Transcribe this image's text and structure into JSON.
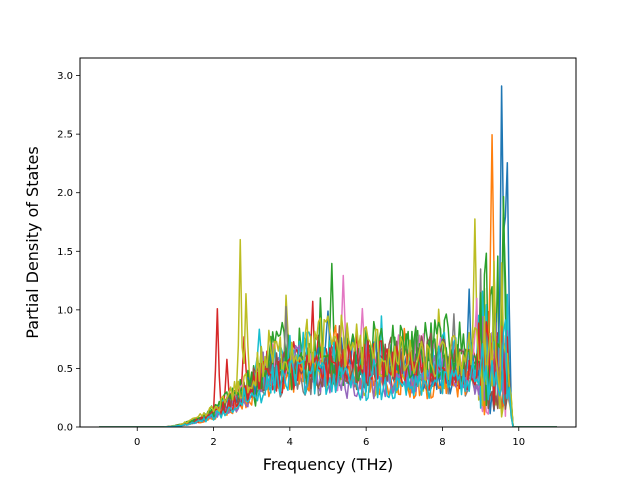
{
  "chart_data": {
    "type": "line",
    "title": "",
    "xlabel": "Frequency (THz)",
    "ylabel": "Partial Density of States",
    "xlim": [
      -1.5,
      11.5
    ],
    "ylim": [
      0,
      3.15
    ],
    "x_ticks": [
      0,
      2,
      4,
      6,
      8,
      10
    ],
    "y_ticks": [
      0.0,
      0.5,
      1.0,
      1.5,
      2.0,
      2.5,
      3.0
    ],
    "x_tick_labels": [
      "0",
      "2",
      "4",
      "6",
      "8",
      "10"
    ],
    "y_tick_labels": [
      "0.0",
      "0.5",
      "1.0",
      "1.5",
      "2.0",
      "2.5",
      "3.0"
    ],
    "grid": false,
    "legend": "none",
    "data_x_range": [
      -1.0,
      11.0
    ],
    "colors": [
      "#1f77b4",
      "#ff7f0e",
      "#2ca02c",
      "#d62728",
      "#9467bd",
      "#8c564b",
      "#e377c2",
      "#7f7f7f",
      "#bcbd22",
      "#17becf"
    ],
    "series": [
      {
        "color": "#d62728",
        "peaks": [
          [
            2.1,
            1.43
          ],
          [
            2.35,
            0.85
          ],
          [
            2.8,
            0.92
          ],
          [
            4.6,
            0.8
          ],
          [
            6.3,
            0.7
          ],
          [
            9.4,
            0.6
          ]
        ]
      },
      {
        "color": "#bcbd22",
        "peaks": [
          [
            2.7,
            1.75
          ],
          [
            2.85,
            1.37
          ],
          [
            3.9,
            1.12
          ],
          [
            7.9,
            1.07
          ],
          [
            8.85,
            1.9
          ],
          [
            9.1,
            1.2
          ]
        ]
      },
      {
        "color": "#2ca02c",
        "peaks": [
          [
            4.8,
            1.2
          ],
          [
            5.1,
            1.36
          ],
          [
            6.2,
            0.85
          ],
          [
            9.15,
            1.27
          ],
          [
            9.6,
            1.4
          ]
        ]
      },
      {
        "color": "#e377c2",
        "peaks": [
          [
            5.4,
            1.51
          ],
          [
            5.9,
            1.15
          ],
          [
            7.4,
            0.8
          ],
          [
            8.9,
            0.95
          ],
          [
            9.5,
            0.45
          ]
        ]
      },
      {
        "color": "#7f7f7f",
        "peaks": [
          [
            3.9,
            1.18
          ],
          [
            5.5,
            1.0
          ],
          [
            7.3,
            0.78
          ],
          [
            8.3,
            1.03
          ],
          [
            9.0,
            0.9
          ]
        ]
      },
      {
        "color": "#1f77b4",
        "peaks": [
          [
            3.5,
            0.72
          ],
          [
            5.0,
            0.8
          ],
          [
            7.6,
            0.7
          ],
          [
            8.7,
            1.2
          ],
          [
            9.55,
            3.02
          ],
          [
            9.7,
            2.42
          ]
        ]
      },
      {
        "color": "#ff7f0e",
        "peaks": [
          [
            3.6,
            0.78
          ],
          [
            5.2,
            0.85
          ],
          [
            7.0,
            0.9
          ],
          [
            9.3,
            2.52
          ]
        ]
      },
      {
        "color": "#17becf",
        "peaks": [
          [
            3.2,
            0.85
          ],
          [
            4.5,
            0.8
          ],
          [
            6.4,
            0.95
          ],
          [
            8.0,
            0.8
          ],
          [
            9.0,
            0.55
          ]
        ]
      },
      {
        "color": "#9467bd",
        "peaks": [
          [
            3.3,
            0.6
          ],
          [
            4.2,
            0.7
          ],
          [
            6.0,
            0.75
          ],
          [
            7.7,
            0.65
          ],
          [
            9.45,
            0.5
          ]
        ]
      },
      {
        "color": "#8c564b",
        "peaks": [
          [
            3.8,
            0.65
          ],
          [
            5.3,
            0.78
          ],
          [
            6.9,
            0.7
          ],
          [
            8.5,
            0.6
          ]
        ]
      },
      {
        "color": "#2ca02c",
        "peaks": [
          [
            3.1,
            0.45
          ],
          [
            4.4,
            0.6
          ],
          [
            6.6,
            0.6
          ],
          [
            9.6,
            1.75
          ]
        ]
      },
      {
        "color": "#d62728",
        "peaks": [
          [
            2.5,
            0.5
          ],
          [
            4.0,
            0.55
          ],
          [
            5.8,
            0.6
          ],
          [
            8.2,
            0.55
          ],
          [
            9.2,
            0.7
          ]
        ]
      },
      {
        "color": "#bcbd22",
        "peaks": [
          [
            3.0,
            0.5
          ],
          [
            4.7,
            0.6
          ],
          [
            6.8,
            0.55
          ],
          [
            8.6,
            0.65
          ]
        ]
      },
      {
        "color": "#17becf",
        "peaks": [
          [
            2.8,
            0.45
          ],
          [
            4.1,
            0.5
          ],
          [
            6.2,
            0.55
          ],
          [
            7.9,
            0.6
          ],
          [
            9.65,
            0.8
          ]
        ]
      }
    ]
  }
}
